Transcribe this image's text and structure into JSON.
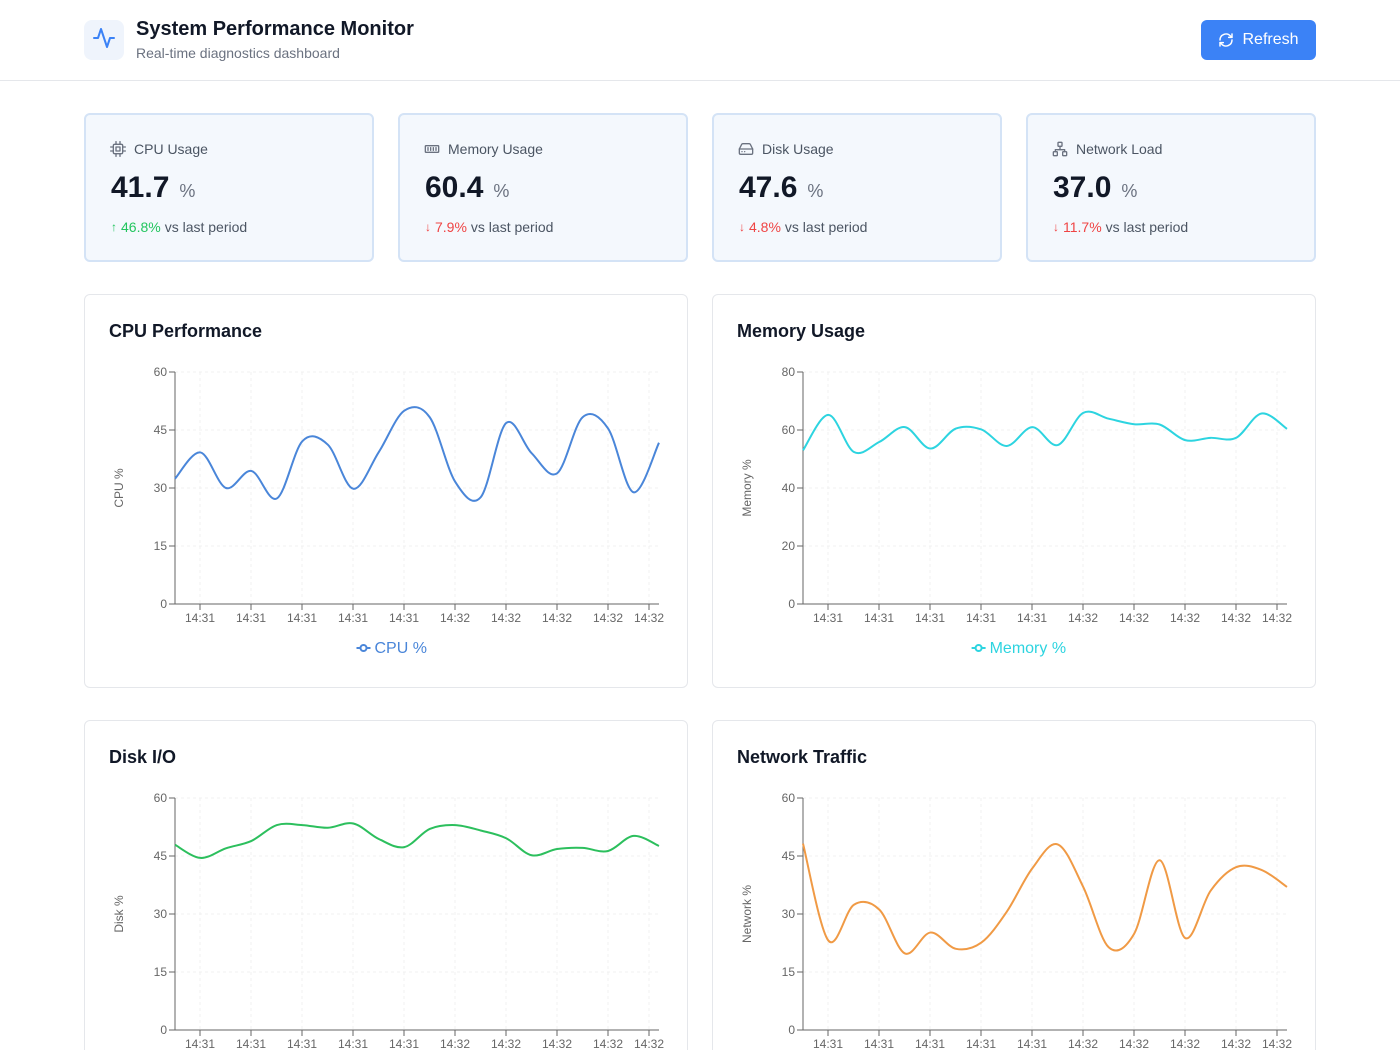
{
  "header": {
    "title": "System Performance Monitor",
    "subtitle": "Real-time diagnostics dashboard",
    "refresh_label": "Refresh",
    "logo_icon": "activity-icon",
    "refresh_icon": "refresh-icon"
  },
  "stats": [
    {
      "label": "CPU Usage",
      "value": "41.7",
      "unit": "%",
      "change": "46.8%",
      "direction": "up",
      "suffix": "vs last period",
      "icon": "cpu-icon"
    },
    {
      "label": "Memory Usage",
      "value": "60.4",
      "unit": "%",
      "change": "7.9%",
      "direction": "down",
      "suffix": "vs last period",
      "icon": "memory-icon"
    },
    {
      "label": "Disk Usage",
      "value": "47.6",
      "unit": "%",
      "change": "4.8%",
      "direction": "down",
      "suffix": "vs last period",
      "icon": "hard-drive-icon"
    },
    {
      "label": "Network Load",
      "value": "37.0",
      "unit": "%",
      "change": "11.7%",
      "direction": "down",
      "suffix": "vs last period",
      "icon": "network-icon"
    }
  ],
  "colors": {
    "accent": "#3b82f6",
    "cpu": "#4a86d9",
    "memory": "#2dd4e0",
    "disk": "#2cbf5d",
    "network": "#f09a45",
    "up": "#22c55e",
    "down": "#ef4444"
  },
  "chart_data": [
    {
      "type": "line",
      "title": "CPU Performance",
      "xlabel": "",
      "ylabel": "CPU %",
      "ylim": [
        0,
        60
      ],
      "yticks": [
        0,
        15,
        30,
        45,
        60
      ],
      "x_tick_labels": [
        "14:31",
        "14:31",
        "14:31",
        "14:31",
        "14:31",
        "14:32",
        "14:32",
        "14:32",
        "14:32",
        "14:32"
      ],
      "legend": "bottom",
      "series": [
        {
          "name": "CPU %",
          "values": [
            32.4,
            39.2,
            30.0,
            34.4,
            27.3,
            42.1,
            41.2,
            29.8,
            39.3,
            50.0,
            48.3,
            31.6,
            27.6,
            46.8,
            39.0,
            33.8,
            48.3,
            45.4,
            28.9,
            41.7
          ]
        }
      ]
    },
    {
      "type": "line",
      "title": "Memory Usage",
      "xlabel": "",
      "ylabel": "Memory %",
      "ylim": [
        0,
        80
      ],
      "yticks": [
        0,
        20,
        40,
        60,
        80
      ],
      "x_tick_labels": [
        "14:31",
        "14:31",
        "14:31",
        "14:31",
        "14:31",
        "14:32",
        "14:32",
        "14:32",
        "14:32",
        "14:32"
      ],
      "legend": "bottom",
      "series": [
        {
          "name": "Memory %",
          "values": [
            53.0,
            65.2,
            52.4,
            55.9,
            61.0,
            53.6,
            60.5,
            60.2,
            54.5,
            61.0,
            54.8,
            65.9,
            63.9,
            62.0,
            61.9,
            56.5,
            57.3,
            57.3,
            65.7,
            60.4
          ]
        }
      ]
    },
    {
      "type": "line",
      "title": "Disk I/O",
      "xlabel": "",
      "ylabel": "Disk %",
      "ylim": [
        0,
        60
      ],
      "yticks": [
        0,
        15,
        30,
        45,
        60
      ],
      "x_tick_labels": [
        "14:31",
        "14:31",
        "14:31",
        "14:31",
        "14:31",
        "14:32",
        "14:32",
        "14:32",
        "14:32",
        "14:32"
      ],
      "legend": "bottom",
      "series": [
        {
          "name": "Disk %",
          "values": [
            47.9,
            44.5,
            47.0,
            48.9,
            53.0,
            53.0,
            52.3,
            53.4,
            49.4,
            47.3,
            52.0,
            53.0,
            51.6,
            49.6,
            45.2,
            46.8,
            47.1,
            46.3,
            50.2,
            47.6
          ]
        }
      ]
    },
    {
      "type": "line",
      "title": "Network Traffic",
      "xlabel": "",
      "ylabel": "Network %",
      "ylim": [
        0,
        60
      ],
      "yticks": [
        0,
        15,
        30,
        45,
        60
      ],
      "x_tick_labels": [
        "14:31",
        "14:31",
        "14:31",
        "14:31",
        "14:31",
        "14:32",
        "14:32",
        "14:32",
        "14:32",
        "14:32"
      ],
      "legend": "bottom",
      "series": [
        {
          "name": "Network %",
          "values": [
            48.2,
            23.1,
            32.4,
            31.1,
            19.8,
            25.2,
            21.0,
            22.6,
            30.6,
            41.8,
            48.0,
            37.0,
            21.4,
            24.9,
            43.9,
            23.8,
            36.0,
            42.1,
            41.4,
            37.0
          ]
        }
      ]
    }
  ]
}
